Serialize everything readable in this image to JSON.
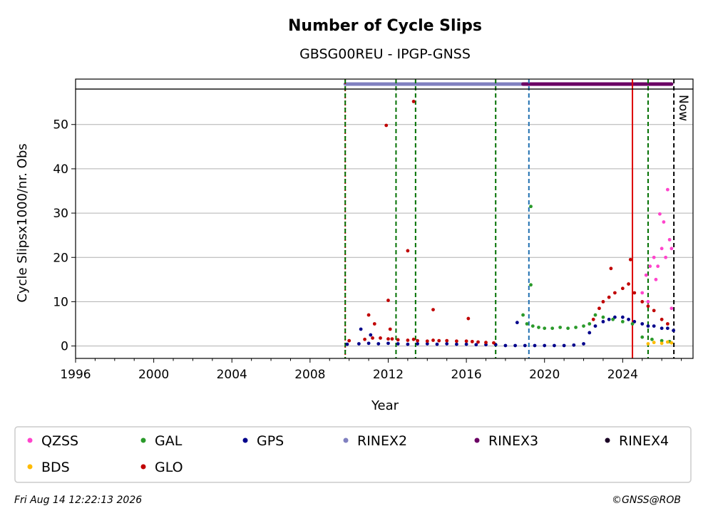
{
  "chart_data": {
    "type": "scatter",
    "title": "Number of Cycle Slips",
    "subtitle": "GBSG00REU - IPGP-GNSS",
    "xlabel": "Year",
    "ylabel": "Cycle Slipsx1000/nr. Obs",
    "xlim": [
      1996,
      2027.6
    ],
    "ylim": [
      -2.8,
      58
    ],
    "x_ticks": [
      1996,
      2000,
      2004,
      2008,
      2012,
      2016,
      2020,
      2024
    ],
    "y_ticks": [
      0,
      10,
      20,
      30,
      40,
      50
    ],
    "grid": "horizontal",
    "now_label": "Now",
    "now_x": 2026.62,
    "legend_position": "bottom",
    "legend": [
      {
        "name": "QZSS",
        "color": "#ff44cc"
      },
      {
        "name": "GAL",
        "color": "#2a9a2a"
      },
      {
        "name": "GPS",
        "color": "#00008b"
      },
      {
        "name": "RINEX2",
        "color": "#8080c0"
      },
      {
        "name": "RINEX3",
        "color": "#6b0064"
      },
      {
        "name": "RINEX4",
        "color": "#1a0024"
      },
      {
        "name": "BDS",
        "color": "#ffbb00"
      },
      {
        "name": "GLO",
        "color": "#c00000"
      }
    ],
    "rinex_bands": [
      {
        "name": "RINEX2",
        "from": 2009.8,
        "to": 2018.9,
        "color": "#8080c0"
      },
      {
        "name": "RINEX3",
        "from": 2018.9,
        "to": 2026.5,
        "color": "#6b0064"
      }
    ],
    "event_lines": [
      {
        "x": 2009.8,
        "color": "#c00000",
        "style": "dotted"
      },
      {
        "x": 2009.8,
        "color": "#007000",
        "style": "dashed"
      },
      {
        "x": 2012.4,
        "color": "#007000",
        "style": "dashed"
      },
      {
        "x": 2013.4,
        "color": "#007000",
        "style": "dashed"
      },
      {
        "x": 2017.5,
        "color": "#007000",
        "style": "dashed"
      },
      {
        "x": 2019.2,
        "color": "#1f6fb0",
        "style": "dashed"
      },
      {
        "x": 2024.5,
        "color": "#dd0000",
        "style": "solid"
      },
      {
        "x": 2025.3,
        "color": "#007000",
        "style": "dashed"
      },
      {
        "x": 2026.62,
        "color": "#000000",
        "style": "dashed"
      }
    ],
    "series": [
      {
        "name": "GPS",
        "color": "#00008b",
        "x": [
          2009.9,
          2010.5,
          2011.0,
          2011.5,
          2012.0,
          2012.5,
          2013.0,
          2013.5,
          2014.0,
          2014.5,
          2015.0,
          2015.5,
          2016.0,
          2016.5,
          2017.0,
          2017.5,
          2018.0,
          2018.5,
          2019.0,
          2019.5,
          2020.0,
          2020.5,
          2021.0,
          2021.5,
          2022.0,
          2022.3,
          2022.6,
          2023.0,
          2023.3,
          2023.6,
          2024.0,
          2024.3,
          2024.6,
          2025.0,
          2025.3,
          2025.6,
          2026.0,
          2026.3,
          2026.6,
          2010.6,
          2011.1,
          2018.6
        ],
        "y": [
          0.4,
          0.5,
          0.6,
          0.5,
          0.6,
          0.5,
          0.4,
          0.5,
          0.5,
          0.4,
          0.5,
          0.4,
          0.4,
          0.3,
          0.3,
          0.3,
          0.1,
          0.1,
          0.1,
          0.1,
          0.1,
          0.1,
          0.1,
          0.2,
          0.5,
          3.0,
          4.5,
          5.5,
          6.0,
          6.5,
          6.5,
          6.0,
          5.5,
          5.0,
          4.5,
          4.5,
          4.0,
          4.0,
          3.5,
          3.8,
          2.5,
          5.3
        ]
      },
      {
        "name": "GLO",
        "color": "#c00000",
        "x": [
          2010.0,
          2010.8,
          2011.2,
          2011.6,
          2012.0,
          2012.2,
          2012.5,
          2013.0,
          2013.3,
          2013.5,
          2014.0,
          2014.3,
          2014.6,
          2015.0,
          2015.5,
          2016.0,
          2016.3,
          2016.6,
          2017.0,
          2017.4,
          2011.0,
          2011.3,
          2011.9,
          2012.0,
          2012.1,
          2013.0,
          2013.3,
          2014.3,
          2016.1,
          2022.5,
          2022.8,
          2023.0,
          2023.3,
          2023.6,
          2024.0,
          2024.3,
          2024.6,
          2025.0,
          2025.3,
          2025.6,
          2026.0,
          2026.3,
          2023.4,
          2024.4
        ],
        "y": [
          1.2,
          1.5,
          1.8,
          1.8,
          1.6,
          1.6,
          1.4,
          1.3,
          1.5,
          1.2,
          1.1,
          1.3,
          1.2,
          1.2,
          1.1,
          1.1,
          1.0,
          0.9,
          0.8,
          0.7,
          7.0,
          5.0,
          49.8,
          10.3,
          3.8,
          21.5,
          55.2,
          8.2,
          6.2,
          6.0,
          8.5,
          10.0,
          11.0,
          12.0,
          13.0,
          14.0,
          12.0,
          10.0,
          9.0,
          8.0,
          6.0,
          5.0,
          17.5,
          19.5
        ]
      },
      {
        "name": "GAL",
        "color": "#2a9a2a",
        "x": [
          2018.9,
          2019.1,
          2019.4,
          2019.7,
          2020.0,
          2020.4,
          2020.8,
          2021.2,
          2021.6,
          2022.0,
          2022.3,
          2022.6,
          2023.0,
          2023.5,
          2024.0,
          2024.5,
          2025.0,
          2025.5,
          2026.0,
          2026.4,
          2019.3,
          2019.3
        ],
        "y": [
          7.0,
          5.0,
          4.5,
          4.2,
          4.0,
          4.0,
          4.2,
          4.0,
          4.2,
          4.5,
          5.0,
          7.0,
          6.5,
          6.0,
          5.5,
          5.0,
          2.0,
          1.5,
          1.2,
          1.0,
          31.5,
          13.8
        ]
      },
      {
        "name": "QZSS",
        "color": "#ff44cc",
        "x": [
          2025.0,
          2025.2,
          2025.4,
          2025.6,
          2025.8,
          2026.0,
          2026.2,
          2026.4,
          2026.5,
          2025.3,
          2025.7,
          2026.1,
          2026.3,
          2025.9,
          2026.5
        ],
        "y": [
          12.0,
          16.0,
          18.0,
          20.0,
          18.0,
          22.0,
          20.0,
          24.0,
          22.0,
          10.0,
          15.0,
          28.0,
          35.3,
          29.8,
          8.5
        ]
      },
      {
        "name": "BDS",
        "color": "#ffbb00",
        "x": [
          2025.3,
          2025.6,
          2026.0,
          2026.3,
          2026.5
        ],
        "y": [
          0.5,
          0.8,
          0.6,
          0.9,
          0.7
        ]
      }
    ]
  },
  "footer": {
    "timestamp": "Fri Aug 14 12:22:13 2026",
    "credit": "©GNSS@ROB"
  }
}
